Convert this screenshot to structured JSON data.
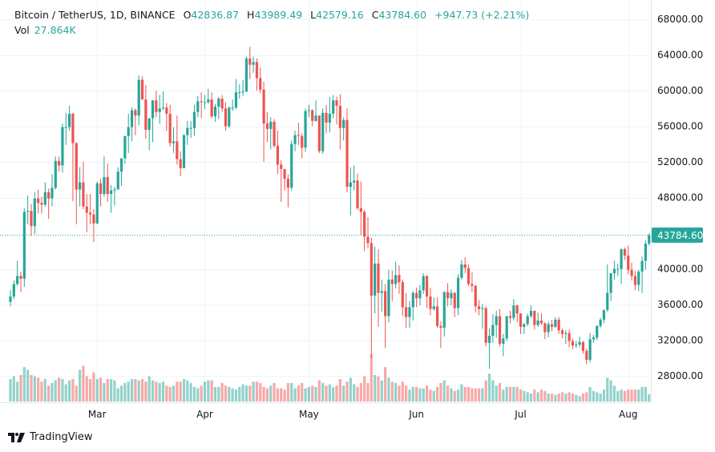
{
  "header": {
    "symbol": "Bitcoin / TetherUS, 1D, BINANCE",
    "open_label": "O",
    "open": "42836.87",
    "high_label": "H",
    "high": "43989.49",
    "low_label": "L",
    "low": "42579.16",
    "close_label": "C",
    "close": "43784.60",
    "change": "+947.73 (+2.21%)",
    "vol_label": "Vol",
    "vol": "27.864K"
  },
  "brand": "TradingView",
  "colors": {
    "up": "#26a69a",
    "down": "#ef5350",
    "grid": "#f0f3fa",
    "text": "#131722"
  },
  "chart_data": {
    "type": "candlestick",
    "interval": "1D",
    "start": "2021-02-04",
    "first_open": 36300,
    "price_axis": {
      "ticks": [
        "68000.00",
        "64000.00",
        "60000.00",
        "56000.00",
        "52000.00",
        "48000.00",
        "40000.00",
        "36000.00",
        "32000.00",
        "28000.00"
      ],
      "range": [
        25700,
        69500
      ],
      "last_price_label": "43784.60"
    },
    "time_axis": {
      "ticks": [
        {
          "label": "Mar",
          "date": "2021-03-01"
        },
        {
          "label": "Apr",
          "date": "2021-04-01"
        },
        {
          "label": "May",
          "date": "2021-05-01"
        },
        {
          "label": "Jun",
          "date": "2021-06-01"
        },
        {
          "label": "Jul",
          "date": "2021-07-01"
        },
        {
          "label": "Aug",
          "date": "2021-08-01"
        }
      ]
    },
    "close": [
      36900,
      38300,
      39200,
      38900,
      46400,
      46500,
      44800,
      47900,
      47400,
      47200,
      48600,
      47900,
      49100,
      52100,
      51600,
      55900,
      55900,
      57400,
      54100,
      48900,
      49700,
      47000,
      46300,
      46100,
      45100,
      49600,
      48400,
      50300,
      48400,
      48800,
      48900,
      50900,
      52400,
      54900,
      55900,
      57800,
      57200,
      61200,
      59000,
      55600,
      56900,
      58900,
      57600,
      58000,
      58100,
      57400,
      54100,
      54300,
      52300,
      51300,
      55000,
      55800,
      55800,
      57600,
      58800,
      58700,
      58700,
      59000,
      57100,
      58200,
      59100,
      58000,
      56000,
      58100,
      58100,
      59800,
      59800,
      59900,
      63600,
      62900,
      63200,
      61400,
      60100,
      56300,
      55700,
      56500,
      53800,
      51700,
      51200,
      50100,
      49100,
      54000,
      55000,
      54900,
      53600,
      57700,
      57800,
      56600,
      57200,
      53200,
      57500,
      56400,
      57400,
      58900,
      58300,
      55800,
      56700,
      49200,
      49700,
      49900,
      46800,
      46400,
      43600,
      42900,
      37000,
      40600,
      37300,
      37500,
      34700,
      38800,
      38300,
      39300,
      38500,
      35700,
      34600,
      35700,
      37300,
      36700,
      37600,
      39200,
      36900,
      35500,
      35800,
      33600,
      33400,
      37400,
      36700,
      37300,
      35600,
      39000,
      40500,
      40100,
      38300,
      38100,
      35800,
      35500,
      35600,
      31700,
      32500,
      33700,
      34700,
      31600,
      32200,
      34700,
      34500,
      35900,
      35000,
      33500,
      33800,
      34700,
      35300,
      33700,
      34200,
      33900,
      32900,
      33800,
      33500,
      34300,
      33100,
      32700,
      32800,
      31900,
      31400,
      31500,
      31800,
      30800,
      29800,
      32100,
      32300,
      33600,
      34300,
      35400,
      37300,
      39500,
      40000,
      40000,
      42200,
      41500,
      39900,
      39200,
      38200,
      39700,
      40900,
      42836.87,
      43784.6
    ],
    "high": [
      37600,
      38700,
      40900,
      39700,
      46800,
      48200,
      47300,
      48600,
      48900,
      48100,
      49700,
      49000,
      50600,
      52600,
      52600,
      56300,
      57500,
      58300,
      57500,
      54200,
      51400,
      52000,
      48400,
      48400,
      46700,
      49800,
      50100,
      52600,
      51800,
      49400,
      49200,
      51400,
      52400,
      54900,
      57400,
      58100,
      58000,
      61700,
      61600,
      60600,
      56900,
      58900,
      60000,
      59500,
      59900,
      58600,
      58400,
      55900,
      57200,
      53200,
      55100,
      56600,
      56600,
      58400,
      59400,
      59800,
      59500,
      60200,
      59800,
      58500,
      59300,
      59500,
      58700,
      58200,
      59000,
      61300,
      60700,
      61200,
      63800,
      64900,
      63800,
      63600,
      62600,
      61000,
      57600,
      57000,
      56800,
      55500,
      52200,
      51200,
      50600,
      54400,
      55500,
      56400,
      55200,
      58000,
      58400,
      57900,
      58900,
      57200,
      58000,
      58400,
      59300,
      59500,
      59300,
      59600,
      57000,
      58000,
      51400,
      51600,
      50700,
      49800,
      46600,
      45800,
      43500,
      42500,
      42200,
      38800,
      38300,
      39900,
      39800,
      40800,
      40400,
      38800,
      37300,
      36400,
      37500,
      37900,
      38200,
      39500,
      39300,
      37900,
      36800,
      36800,
      34100,
      37500,
      38400,
      37700,
      37400,
      39400,
      41000,
      41300,
      40500,
      39600,
      38200,
      36500,
      36100,
      35800,
      33300,
      34900,
      35300,
      35500,
      32700,
      34700,
      35300,
      36600,
      36000,
      35000,
      33900,
      35000,
      35900,
      35300,
      35100,
      35000,
      34000,
      34100,
      34300,
      34600,
      34600,
      33300,
      33100,
      33200,
      32200,
      31900,
      32400,
      31900,
      31100,
      32800,
      32600,
      33700,
      34500,
      35400,
      40500,
      39500,
      40900,
      40600,
      42300,
      42400,
      42600,
      40700,
      39800,
      39900,
      41400,
      43200,
      43989.49
    ],
    "low": [
      35800,
      36600,
      38100,
      37400,
      38000,
      45000,
      43700,
      43900,
      46200,
      46200,
      47000,
      45600,
      47000,
      48900,
      50900,
      50800,
      53900,
      55500,
      47600,
      45000,
      47000,
      46700,
      44100,
      45000,
      43000,
      45000,
      47000,
      48100,
      47500,
      46300,
      47100,
      48900,
      49300,
      51800,
      53000,
      54300,
      55000,
      56100,
      59000,
      54600,
      53300,
      54200,
      57000,
      56300,
      57800,
      55500,
      53700,
      53000,
      51700,
      50400,
      51300,
      53900,
      54700,
      54900,
      57000,
      56900,
      57900,
      58500,
      56900,
      56500,
      56800,
      57600,
      55500,
      55800,
      57700,
      57900,
      59100,
      59400,
      59800,
      61300,
      62000,
      60000,
      59700,
      52000,
      54200,
      53400,
      53600,
      50600,
      47500,
      48800,
      46900,
      48800,
      53200,
      53900,
      52400,
      53100,
      57000,
      56000,
      56500,
      53000,
      52900,
      55200,
      55300,
      56900,
      56200,
      53400,
      54400,
      48600,
      46000,
      48800,
      46600,
      43800,
      42000,
      42300,
      30000,
      35000,
      33500,
      35200,
      31100,
      34000,
      36400,
      37800,
      37200,
      34700,
      33400,
      33400,
      34200,
      35700,
      35900,
      37200,
      35600,
      34800,
      35300,
      33400,
      31100,
      32400,
      35800,
      35900,
      34600,
      34800,
      38800,
      39500,
      38100,
      37400,
      35100,
      34800,
      33300,
      31300,
      28800,
      31700,
      32300,
      31300,
      30200,
      31900,
      33900,
      34200,
      34000,
      32700,
      32700,
      33600,
      34500,
      33200,
      33500,
      33700,
      32100,
      32300,
      33000,
      33400,
      32700,
      32200,
      31600,
      31200,
      31000,
      31100,
      31200,
      30500,
      29300,
      29500,
      31700,
      32000,
      33400,
      33900,
      35200,
      36400,
      38800,
      39200,
      38300,
      41000,
      39400,
      38700,
      37600,
      37500,
      37300,
      39900,
      42579.16
    ],
    "volume_k": [
      85,
      95,
      75,
      100,
      130,
      120,
      100,
      95,
      90,
      75,
      85,
      60,
      70,
      80,
      90,
      85,
      65,
      80,
      85,
      60,
      120,
      135,
      95,
      85,
      110,
      85,
      90,
      70,
      85,
      85,
      80,
      50,
      60,
      70,
      75,
      85,
      85,
      80,
      85,
      75,
      95,
      80,
      75,
      70,
      75,
      60,
      55,
      60,
      75,
      75,
      85,
      80,
      70,
      55,
      50,
      60,
      75,
      80,
      80,
      55,
      55,
      70,
      60,
      55,
      50,
      45,
      55,
      65,
      60,
      60,
      75,
      75,
      70,
      55,
      50,
      60,
      70,
      50,
      50,
      45,
      70,
      70,
      50,
      60,
      70,
      50,
      55,
      60,
      55,
      80,
      70,
      60,
      65,
      55,
      60,
      85,
      60,
      75,
      90,
      65,
      55,
      70,
      95,
      70,
      180,
      100,
      95,
      80,
      130,
      90,
      75,
      70,
      60,
      75,
      60,
      45,
      55,
      55,
      50,
      50,
      60,
      45,
      40,
      55,
      70,
      80,
      60,
      50,
      40,
      45,
      65,
      55,
      55,
      50,
      50,
      50,
      50,
      80,
      105,
      80,
      60,
      70,
      45,
      55,
      55,
      55,
      55,
      45,
      40,
      35,
      30,
      45,
      35,
      45,
      40,
      30,
      30,
      25,
      30,
      35,
      30,
      35,
      30,
      25,
      20,
      30,
      35,
      55,
      40,
      35,
      30,
      45,
      90,
      80,
      60,
      40,
      45,
      40,
      45,
      45,
      45,
      45,
      55,
      55,
      27.864
    ]
  }
}
